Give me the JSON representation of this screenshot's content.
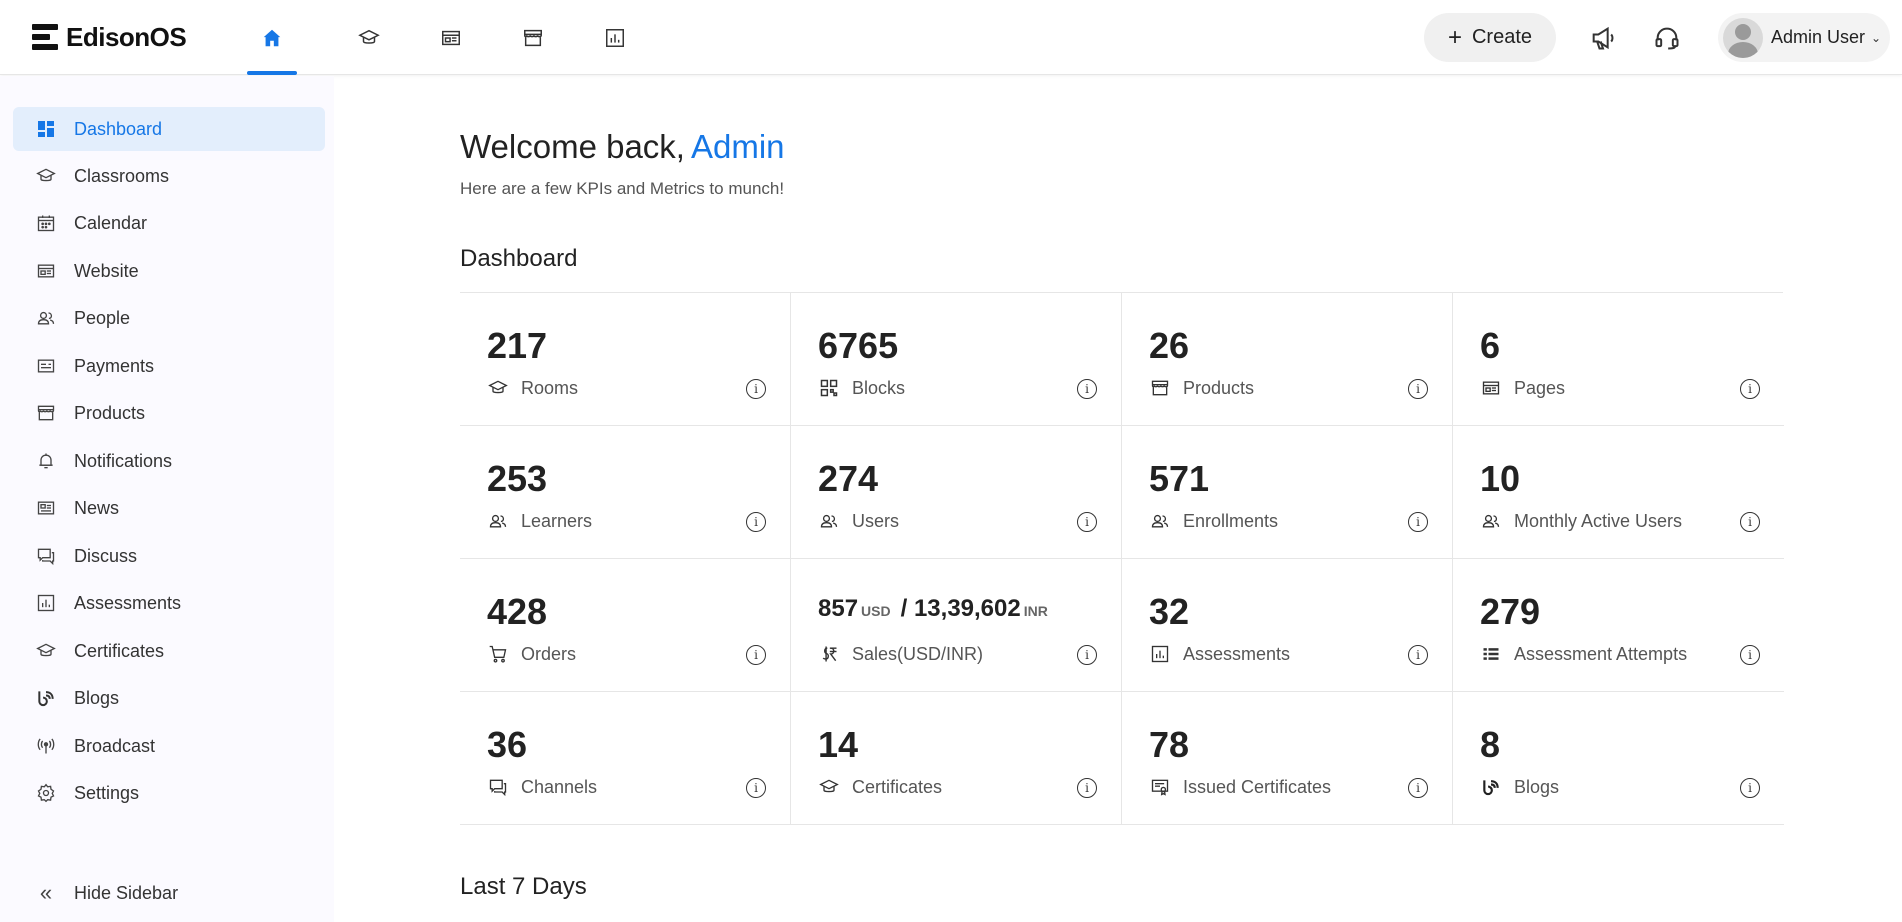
{
  "app": {
    "name": "EdisonOS"
  },
  "topnav": [
    "home-icon",
    "classroom-icon",
    "website-icon",
    "store-icon",
    "chart-icon"
  ],
  "header": {
    "create_label": "Create",
    "user_name": "Admin User"
  },
  "sidebar": {
    "items": [
      {
        "label": "Dashboard",
        "icon": "dashboard-icon",
        "active": true
      },
      {
        "label": "Classrooms",
        "icon": "classroom-icon"
      },
      {
        "label": "Calendar",
        "icon": "calendar-icon"
      },
      {
        "label": "Website",
        "icon": "website-icon"
      },
      {
        "label": "People",
        "icon": "people-icon"
      },
      {
        "label": "Payments",
        "icon": "payments-icon"
      },
      {
        "label": "Products",
        "icon": "store-icon"
      },
      {
        "label": "Notifications",
        "icon": "bell-icon"
      },
      {
        "label": "News",
        "icon": "news-icon"
      },
      {
        "label": "Discuss",
        "icon": "chat-icon"
      },
      {
        "label": "Assessments",
        "icon": "chart-icon"
      },
      {
        "label": "Certificates",
        "icon": "certificate-icon"
      },
      {
        "label": "Blogs",
        "icon": "blog-icon"
      },
      {
        "label": "Broadcast",
        "icon": "broadcast-icon"
      },
      {
        "label": "Settings",
        "icon": "gear-icon"
      }
    ],
    "hide_label": "Hide Sidebar"
  },
  "main": {
    "welcome": "Welcome back,",
    "admin_name": "Admin",
    "subtitle": "Here are a few KPIs and Metrics to munch!",
    "dashboard_title": "Dashboard",
    "last7_title": "Last 7 Days"
  },
  "kpis": [
    {
      "value": "217",
      "label": "Rooms",
      "icon": "classroom-icon"
    },
    {
      "value": "6765",
      "label": "Blocks",
      "icon": "blocks-icon"
    },
    {
      "value": "26",
      "label": "Products",
      "icon": "store-icon"
    },
    {
      "value": "6",
      "label": "Pages",
      "icon": "website-icon"
    },
    {
      "value": "253",
      "label": "Learners",
      "icon": "people-icon"
    },
    {
      "value": "274",
      "label": "Users",
      "icon": "people-icon"
    },
    {
      "value": "571",
      "label": "Enrollments",
      "icon": "people-icon"
    },
    {
      "value": "10",
      "label": "Monthly Active Users",
      "icon": "people-icon"
    },
    {
      "value": "428",
      "label": "Orders",
      "icon": "cart-icon"
    },
    {
      "value": "",
      "usd": "857",
      "usd_unit": "USD",
      "sep": "/",
      "inr": "13,39,602",
      "inr_unit": "INR",
      "label": "Sales(USD/INR)",
      "icon": "currency-icon"
    },
    {
      "value": "32",
      "label": "Assessments",
      "icon": "chart-icon"
    },
    {
      "value": "279",
      "label": "Assessment Attempts",
      "icon": "list-icon"
    },
    {
      "value": "36",
      "label": "Channels",
      "icon": "chat-icon"
    },
    {
      "value": "14",
      "label": "Certificates",
      "icon": "certificate-icon"
    },
    {
      "value": "78",
      "label": "Issued Certificates",
      "icon": "issued-certificate-icon"
    },
    {
      "value": "8",
      "label": "Blogs",
      "icon": "blog-icon"
    }
  ]
}
